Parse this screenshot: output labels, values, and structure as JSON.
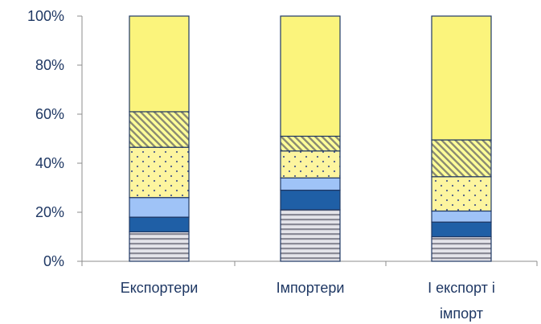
{
  "chart_data": {
    "type": "bar",
    "stacked": true,
    "percent_stacked": true,
    "categories": [
      [
        "Експортери"
      ],
      [
        "Імпортери"
      ],
      [
        "І експорт і",
        "імпорт"
      ]
    ],
    "series": [
      {
        "values": [
          12,
          21,
          10
        ],
        "color": "#d9d9e3",
        "pattern": "horizontal-lines"
      },
      {
        "values": [
          6,
          8,
          6
        ],
        "color": "#1f5fa6",
        "pattern": "solid"
      },
      {
        "values": [
          8,
          5,
          4.5
        ],
        "color": "#9fc3f7",
        "pattern": "solid"
      },
      {
        "values": [
          20.5,
          11,
          14
        ],
        "color": "#fdf59f",
        "pattern": "dots"
      },
      {
        "values": [
          14.5,
          6,
          15
        ],
        "color": "#ffff99",
        "pattern": "diagonal-hatch"
      },
      {
        "values": [
          39,
          49,
          50.5
        ],
        "color": "#fbf47c",
        "pattern": "solid"
      }
    ],
    "yticks": [
      "0%",
      "20%",
      "40%",
      "60%",
      "80%",
      "100%"
    ],
    "ylim": [
      0,
      100
    ],
    "legend": "none",
    "grid": false
  }
}
